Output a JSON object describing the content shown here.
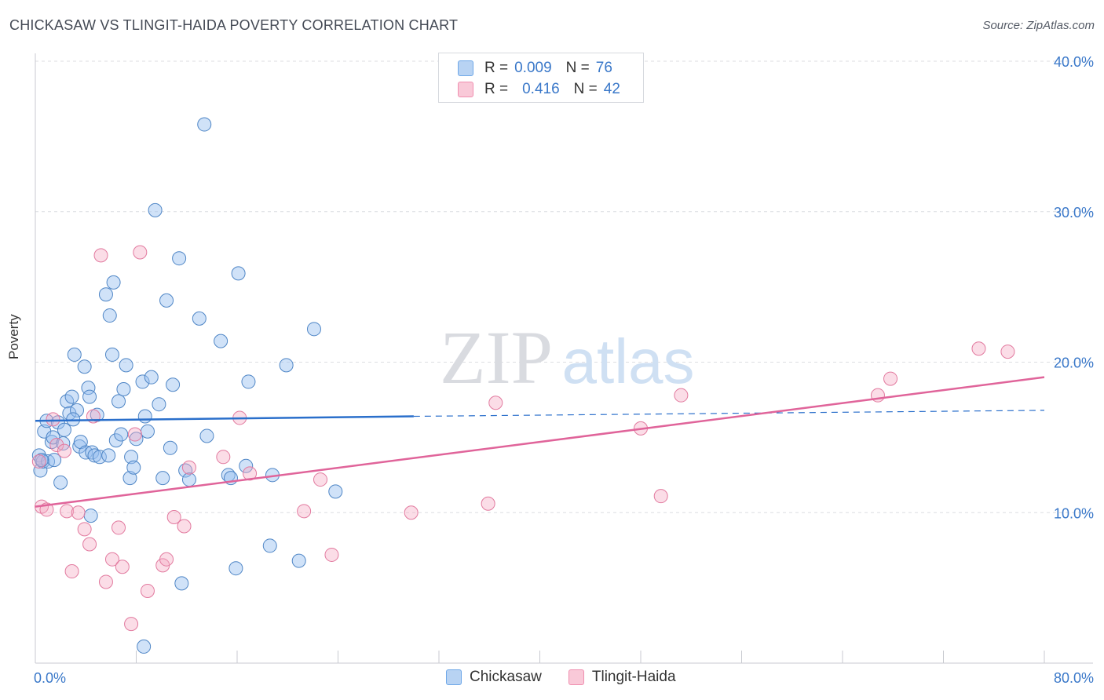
{
  "header": {
    "title": "CHICKASAW VS TLINGIT-HAIDA POVERTY CORRELATION CHART",
    "source": "Source: ZipAtlas.com"
  },
  "watermark": {
    "zip": "ZIP",
    "atlas": "atlas"
  },
  "legend": {
    "series": [
      {
        "r_label": "R =",
        "r_value": "0.009",
        "n_label": "N =",
        "n_value": "76",
        "color": "#6fa8e8"
      },
      {
        "r_label": "R =",
        "r_value": "0.416",
        "n_label": "N =",
        "n_value": "42",
        "color": "#f08fb0"
      }
    ]
  },
  "bottom_legend": {
    "items": [
      "Chickasaw",
      "Tlingit-Haida"
    ]
  },
  "chart_data": {
    "type": "scatter",
    "title": "CHICKASAW VS TLINGIT-HAIDA POVERTY CORRELATION CHART",
    "xlabel": "",
    "ylabel": "Poverty",
    "xlim": [
      0,
      80
    ],
    "ylim": [
      0,
      40
    ],
    "x_tick_labels": [
      "0.0%",
      "80.0%"
    ],
    "y_ticks": [
      10,
      20,
      30,
      40
    ],
    "y_tick_labels": [
      "10.0%",
      "20.0%",
      "30.0%",
      "40.0%"
    ],
    "grid": true,
    "series": [
      {
        "name": "Chickasaw",
        "color": "#6fa8e8",
        "stroke": "#4f86c6",
        "trend": {
          "x": [
            0,
            30
          ],
          "y": [
            16.1,
            16.4
          ],
          "dashed_to": [
            80,
            16.8
          ],
          "color": "#2a6fcb"
        },
        "points": [
          [
            0.3,
            13.8
          ],
          [
            0.4,
            12.8
          ],
          [
            0.6,
            13.4
          ],
          [
            0.7,
            15.4
          ],
          [
            0.9,
            16.1
          ],
          [
            1.0,
            13.4
          ],
          [
            1.3,
            14.7
          ],
          [
            1.4,
            15.0
          ],
          [
            1.5,
            13.5
          ],
          [
            1.8,
            16.0
          ],
          [
            2.0,
            12.0
          ],
          [
            2.2,
            14.6
          ],
          [
            2.3,
            15.5
          ],
          [
            2.5,
            17.4
          ],
          [
            2.7,
            16.6
          ],
          [
            2.9,
            17.7
          ],
          [
            3.1,
            20.5
          ],
          [
            3.3,
            16.8
          ],
          [
            3.5,
            14.4
          ],
          [
            3.6,
            14.7
          ],
          [
            3.9,
            19.7
          ],
          [
            4.0,
            14.0
          ],
          [
            4.2,
            18.3
          ],
          [
            4.3,
            17.7
          ],
          [
            4.5,
            14.0
          ],
          [
            4.7,
            13.8
          ],
          [
            4.9,
            16.5
          ],
          [
            5.1,
            13.7
          ],
          [
            5.6,
            24.5
          ],
          [
            5.8,
            13.8
          ],
          [
            5.9,
            23.1
          ],
          [
            6.1,
            20.5
          ],
          [
            6.2,
            25.3
          ],
          [
            6.4,
            14.8
          ],
          [
            6.6,
            17.4
          ],
          [
            6.8,
            15.2
          ],
          [
            7.0,
            18.2
          ],
          [
            7.2,
            19.8
          ],
          [
            7.5,
            12.3
          ],
          [
            7.6,
            13.7
          ],
          [
            7.8,
            13.0
          ],
          [
            8.0,
            14.9
          ],
          [
            8.5,
            18.7
          ],
          [
            8.7,
            16.4
          ],
          [
            8.9,
            15.4
          ],
          [
            9.2,
            19.0
          ],
          [
            9.5,
            30.1
          ],
          [
            9.8,
            17.2
          ],
          [
            10.1,
            12.3
          ],
          [
            10.4,
            24.1
          ],
          [
            10.7,
            14.3
          ],
          [
            10.9,
            18.5
          ],
          [
            11.4,
            26.9
          ],
          [
            11.6,
            5.3
          ],
          [
            11.9,
            12.8
          ],
          [
            12.2,
            12.2
          ],
          [
            13.0,
            22.9
          ],
          [
            13.4,
            35.8
          ],
          [
            13.6,
            15.1
          ],
          [
            14.7,
            21.4
          ],
          [
            15.3,
            12.5
          ],
          [
            15.5,
            12.3
          ],
          [
            15.9,
            6.3
          ],
          [
            16.1,
            25.9
          ],
          [
            16.7,
            13.1
          ],
          [
            16.9,
            18.7
          ],
          [
            18.6,
            7.8
          ],
          [
            18.8,
            12.5
          ],
          [
            19.9,
            19.8
          ],
          [
            20.9,
            6.8
          ],
          [
            22.1,
            22.2
          ],
          [
            23.8,
            11.4
          ],
          [
            8.6,
            1.1
          ],
          [
            4.4,
            9.8
          ],
          [
            0.5,
            13.5
          ],
          [
            3.0,
            16.2
          ]
        ]
      },
      {
        "name": "Tlingit-Haida",
        "color": "#f4a7c0",
        "stroke": "#e27a9f",
        "trend": {
          "x": [
            0,
            80
          ],
          "y": [
            10.4,
            19.0
          ],
          "color": "#e0649a"
        },
        "points": [
          [
            0.3,
            13.4
          ],
          [
            0.5,
            10.4
          ],
          [
            0.9,
            10.2
          ],
          [
            1.4,
            16.2
          ],
          [
            1.7,
            14.5
          ],
          [
            2.3,
            14.1
          ],
          [
            2.5,
            10.1
          ],
          [
            2.9,
            6.1
          ],
          [
            3.4,
            10.0
          ],
          [
            3.9,
            8.9
          ],
          [
            4.3,
            7.9
          ],
          [
            4.6,
            16.4
          ],
          [
            5.2,
            27.1
          ],
          [
            5.6,
            5.4
          ],
          [
            6.1,
            6.9
          ],
          [
            6.6,
            9.0
          ],
          [
            6.9,
            6.4
          ],
          [
            7.6,
            2.6
          ],
          [
            7.9,
            15.2
          ],
          [
            8.3,
            27.3
          ],
          [
            8.9,
            4.8
          ],
          [
            10.1,
            6.5
          ],
          [
            10.4,
            6.9
          ],
          [
            11.0,
            9.7
          ],
          [
            11.8,
            9.1
          ],
          [
            12.2,
            13.0
          ],
          [
            14.9,
            13.7
          ],
          [
            16.2,
            16.3
          ],
          [
            17.0,
            12.6
          ],
          [
            21.3,
            10.1
          ],
          [
            22.6,
            12.2
          ],
          [
            23.5,
            7.2
          ],
          [
            29.8,
            10.0
          ],
          [
            35.9,
            10.6
          ],
          [
            36.5,
            17.3
          ],
          [
            48.0,
            15.6
          ],
          [
            49.6,
            11.1
          ],
          [
            51.2,
            17.8
          ],
          [
            66.8,
            17.8
          ],
          [
            67.8,
            18.9
          ],
          [
            74.8,
            20.9
          ],
          [
            77.1,
            20.7
          ]
        ]
      }
    ]
  }
}
